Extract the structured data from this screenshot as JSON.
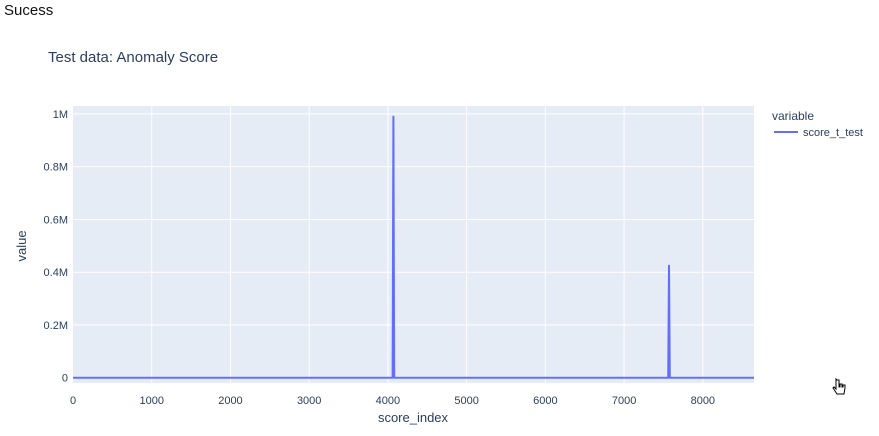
{
  "status_text": "Sucess",
  "chart_data": {
    "type": "line",
    "title": "Test data: Anomaly Score",
    "xlabel": "score_index",
    "ylabel": "value",
    "xlim": [
      0,
      8650
    ],
    "ylim": [
      -20000,
      1030000
    ],
    "x_ticks": [
      0,
      1000,
      2000,
      3000,
      4000,
      5000,
      6000,
      7000,
      8000
    ],
    "x_tick_labels": [
      "0",
      "1000",
      "2000",
      "3000",
      "4000",
      "5000",
      "6000",
      "7000",
      "8000"
    ],
    "y_ticks": [
      0,
      200000,
      400000,
      600000,
      800000,
      1000000
    ],
    "y_tick_labels": [
      "0",
      "0.2M",
      "0.4M",
      "0.6M",
      "0.8M",
      "1M"
    ],
    "grid": true,
    "legend": {
      "title": "variable",
      "placement": "top-right"
    },
    "series": [
      {
        "name": "score_t_test",
        "color": "#636efa",
        "x": [
          0,
          4060,
          4070,
          4080,
          7560,
          7570,
          7580,
          8650
        ],
        "y": [
          0,
          0,
          990000,
          0,
          0,
          425000,
          0,
          0
        ]
      }
    ]
  },
  "colors": {
    "plot_bg": "#e5ecf6",
    "grid": "#ffffff",
    "title": "#2a3f5f",
    "tick": "#2a3f5f",
    "line": "#636efa"
  }
}
